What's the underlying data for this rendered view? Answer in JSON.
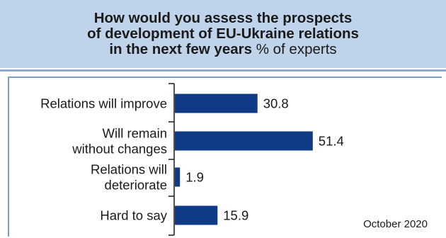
{
  "title": {
    "line1": "How would you assess the prospects",
    "line2": "of development of EU-Ukraine relations",
    "line3_bold": "in the next few years",
    "line3_rest": " % of experts"
  },
  "note": "October 2020",
  "colors": {
    "bar": "#0f3b86",
    "title_band": "#bfd3ea",
    "frame": "#7d9cc6"
  },
  "chart_data": {
    "type": "bar",
    "orientation": "horizontal",
    "title": "How would you assess the prospects of development of EU-Ukraine relations in the next few years % of experts",
    "categories": [
      [
        "Relations will improve"
      ],
      [
        "Will remain",
        "without changes"
      ],
      [
        "Relations will",
        "deteriorate"
      ],
      [
        "Hard to say"
      ]
    ],
    "values": [
      30.8,
      51.4,
      1.9,
      15.9
    ],
    "xlim": [
      0,
      55
    ],
    "grid": false,
    "legend": "none"
  }
}
